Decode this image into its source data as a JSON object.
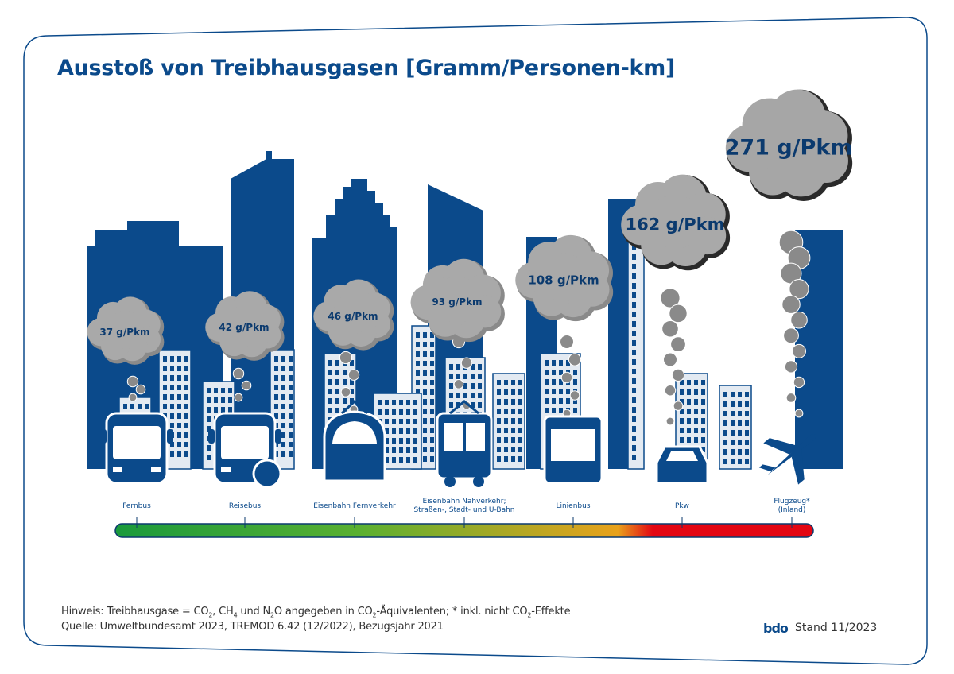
{
  "title": "Ausstoß von Treibhausgasen [Gramm/Personen-km]",
  "chart_data": {
    "type": "bar",
    "title": "Ausstoß von Treibhausgasen [Gramm/Personen-km]",
    "unit": "g/Pkm",
    "categories": [
      "Fernbus",
      "Reisebus",
      "Eisenbahn Fernverkehr",
      "Eisenbahn Nahverkehr; Straßen-, Stadt- und U-Bahn",
      "Linienbus",
      "Pkw",
      "Flugzeug* (Inland)"
    ],
    "category_lines": [
      [
        "Fernbus"
      ],
      [
        "Reisebus"
      ],
      [
        "Eisenbahn Fernverkehr"
      ],
      [
        "Eisenbahn Nahverkehr;",
        "Straßen-, Stadt- und U-Bahn"
      ],
      [
        "Linienbus"
      ],
      [
        "Pkw"
      ],
      [
        "Flugzeug*",
        "(Inland)"
      ]
    ],
    "values": [
      37,
      42,
      46,
      93,
      108,
      162,
      271
    ],
    "value_labels": [
      "37 g/Pkm",
      "42 g/Pkm",
      "46 g/Pkm",
      "93 g/Pkm",
      "108 g/Pkm",
      "162 g/Pkm",
      "271 g/Pkm"
    ],
    "icons": [
      "coach-bus-icon",
      "travel-coach-icon",
      "intercity-train-icon",
      "tram-icon",
      "city-bus-icon",
      "car-icon",
      "airplane-icon"
    ],
    "scale_colors": [
      "#1a9a3c",
      "#e8a21c",
      "#e30613"
    ]
  },
  "notes": {
    "hint_prefix": "Hinweis: Treibhausgase = CO",
    "hint_sub1": "2",
    "hint_p2": ", CH",
    "hint_sub2": "4",
    "hint_p3": " und N",
    "hint_sub3": "2",
    "hint_p4": "O angegeben in CO",
    "hint_sub4": "2",
    "hint_p5": "-Äquivalenten; * inkl. nicht CO",
    "hint_sub5": "2",
    "hint_p6": "-Effekte",
    "source": "Quelle: Umweltbundesamt 2023, TREMOD 6.42 (12/2022), Bezugsjahr 2021"
  },
  "footer": {
    "logo": "bdo",
    "stand": "Stand 11/2023"
  },
  "colors": {
    "navy": "#0b4a8b",
    "cloud": "#9e9e9e",
    "cloud_dark": "#1a1a1a",
    "city_light": "#e3eaf2"
  }
}
